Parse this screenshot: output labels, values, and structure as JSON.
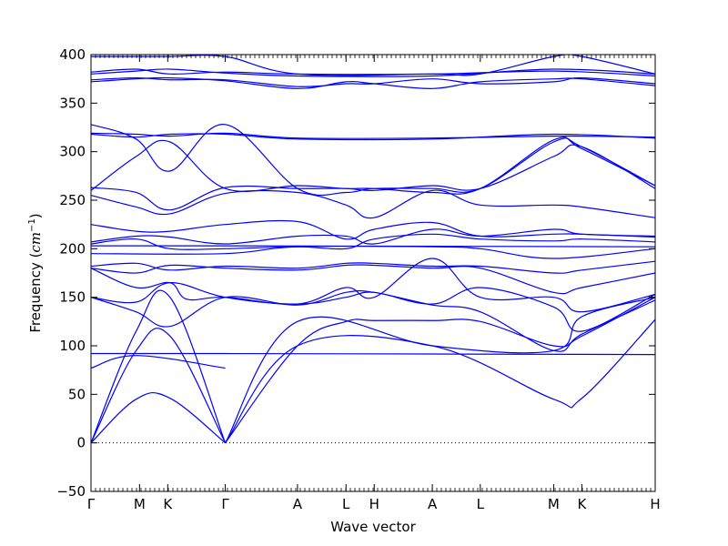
{
  "chart_data": {
    "type": "line",
    "xlabel": "Wave vector",
    "ylabel": "Frequency",
    "ylabel_unit": "cm",
    "ylabel_unit_exp": "−1",
    "ylim": [
      -50,
      400
    ],
    "yticks": [
      -50,
      0,
      50,
      100,
      150,
      200,
      250,
      300,
      350,
      400
    ],
    "x_range": [
      0,
      10
    ],
    "x_ticks": [
      {
        "pos": 0.0,
        "label": "Γ"
      },
      {
        "pos": 0.86,
        "label": "M"
      },
      {
        "pos": 1.36,
        "label": "K"
      },
      {
        "pos": 2.38,
        "label": "Γ"
      },
      {
        "pos": 3.66,
        "label": "A"
      },
      {
        "pos": 4.52,
        "label": "L"
      },
      {
        "pos": 5.02,
        "label": "H"
      },
      {
        "pos": 6.05,
        "label": "A"
      },
      {
        "pos": 6.9,
        "label": "L"
      },
      {
        "pos": 8.2,
        "label": "M"
      },
      {
        "pos": 8.7,
        "label": "K"
      },
      {
        "pos": 10.0,
        "label": "H"
      }
    ],
    "zero_line": true,
    "line_color": "#0000ff",
    "series": [
      {
        "x": [
          0,
          0.8,
          1.4,
          2.38
        ],
        "y": [
          0,
          45,
          46,
          0
        ]
      },
      {
        "x": [
          0,
          0.8,
          1.4,
          2.38
        ],
        "y": [
          0,
          95,
          110,
          0
        ]
      },
      {
        "x": [
          0,
          0.8,
          1.4,
          2.38
        ],
        "y": [
          0,
          115,
          150,
          0
        ]
      },
      {
        "x": [
          2.38,
          3.66,
          6.05,
          8.2,
          8.7,
          10
        ],
        "y": [
          0,
          100,
          100,
          45,
          46,
          127
        ]
      },
      {
        "x": [
          2.38,
          3.66,
          4.52,
          5.02,
          6.05,
          6.9,
          8.2,
          8.7,
          10
        ],
        "y": [
          0,
          100,
          125,
          126,
          126,
          125,
          100,
          110,
          150
        ]
      },
      {
        "x": [
          2.38,
          3.66,
          6.05,
          8.2,
          8.7,
          10
        ],
        "y": [
          0,
          125,
          100,
          95,
          130,
          150
        ]
      },
      {
        "x": [
          0,
          2.38,
          10
        ],
        "y": [
          92,
          92,
          91
        ]
      },
      {
        "x": [
          0,
          0.8,
          2.38
        ],
        "y": [
          77,
          90,
          77
        ]
      },
      {
        "x": [
          0,
          0.8,
          1.4,
          2.38,
          3.66,
          4.52,
          5.02,
          6.05,
          6.9,
          8.2,
          8.7,
          10
        ],
        "y": [
          150,
          135,
          120,
          150,
          142,
          155,
          155,
          142,
          135,
          95,
          112,
          147
        ]
      },
      {
        "x": [
          0,
          0.8,
          1.4,
          2.38,
          3.66,
          4.52,
          5.02,
          6.05,
          6.9,
          8.2,
          8.7,
          10
        ],
        "y": [
          150,
          145,
          165,
          150,
          143,
          150,
          155,
          143,
          160,
          140,
          115,
          153
        ]
      },
      {
        "x": [
          0,
          0.8,
          1.4,
          1.7,
          2.38,
          3.66,
          4.52,
          5.02,
          6.05,
          6.9,
          8.2,
          8.7,
          10
        ],
        "y": [
          180,
          160,
          165,
          148,
          150,
          143,
          160,
          150,
          190,
          150,
          150,
          135,
          153
        ]
      },
      {
        "x": [
          0,
          0.8,
          1.4,
          2.38,
          3.66,
          4.52,
          5.02,
          6.05,
          6.9,
          8.2,
          8.7,
          10
        ],
        "y": [
          180,
          175,
          183,
          180,
          178,
          183,
          183,
          180,
          180,
          155,
          160,
          175
        ]
      },
      {
        "x": [
          0,
          0.8,
          1.4,
          2.38,
          3.66,
          4.52,
          5.02,
          6.05,
          6.9,
          8.2,
          8.7,
          10
        ],
        "y": [
          182,
          185,
          178,
          182,
          180,
          185,
          185,
          182,
          182,
          175,
          178,
          187
        ]
      },
      {
        "x": [
          0,
          2.38,
          3.66,
          6.05,
          6.9,
          8.2,
          10
        ],
        "y": [
          195,
          195,
          202,
          202,
          200,
          190,
          200
        ]
      },
      {
        "x": [
          0,
          0.8,
          1.4,
          2.38,
          3.66,
          4.52,
          5.02,
          6.05,
          6.9,
          8.2,
          8.7,
          10
        ],
        "y": [
          205,
          210,
          200,
          200,
          202,
          200,
          210,
          215,
          210,
          208,
          210,
          207
        ]
      },
      {
        "x": [
          0,
          2.38,
          10
        ],
        "y": [
          203,
          203,
          202
        ]
      },
      {
        "x": [
          0,
          0.8,
          1.4,
          2.38,
          3.66,
          4.52,
          5.02,
          6.05,
          6.9,
          8.2,
          8.7,
          10
        ],
        "y": [
          207,
          213,
          212,
          205,
          213,
          213,
          205,
          220,
          213,
          220,
          215,
          213
        ]
      },
      {
        "x": [
          0,
          0.8,
          1.4,
          2.38,
          3.66,
          4.52,
          5.02,
          6.05,
          6.9,
          8.2,
          8.7,
          10
        ],
        "y": [
          225,
          218,
          218,
          225,
          228,
          210,
          220,
          227,
          213,
          215,
          215,
          212
        ]
      },
      {
        "x": [
          0,
          0.8,
          1.4,
          2.38,
          3.66,
          4.52,
          5.02,
          6.05,
          6.9,
          8.2,
          8.7,
          10
        ],
        "y": [
          255,
          243,
          236,
          257,
          258,
          245,
          232,
          260,
          245,
          245,
          243,
          232
        ]
      },
      {
        "x": [
          0,
          0.8,
          1.4,
          2.38,
          3.66,
          4.52,
          5.02,
          6.05,
          6.9,
          8.2,
          8.7,
          10
        ],
        "y": [
          263,
          258,
          240,
          263,
          262,
          262,
          260,
          265,
          262,
          295,
          305,
          262
        ]
      },
      {
        "x": [
          0,
          0.8,
          1.4,
          2.38,
          3.66,
          4.52,
          5.02,
          6.05,
          6.9,
          8.2,
          8.7,
          10
        ],
        "y": [
          260,
          295,
          310,
          262,
          265,
          262,
          262,
          258,
          262,
          312,
          303,
          265
        ]
      },
      {
        "x": [
          0,
          0.8,
          1.4,
          2.38,
          3.66,
          4.52,
          5.02,
          6.05,
          6.9,
          8.2,
          8.7,
          10
        ],
        "y": [
          328,
          313,
          280,
          328,
          262,
          258,
          262,
          262,
          262,
          310,
          305,
          265
        ]
      },
      {
        "x": [
          0,
          0.8,
          1.4,
          2.38,
          3.66,
          6.05,
          8.2,
          10
        ],
        "y": [
          318,
          315,
          318,
          318,
          313,
          313,
          318,
          314
        ]
      },
      {
        "x": [
          0,
          0.8,
          1.4,
          2.38,
          3.66,
          6.05,
          8.2,
          10
        ],
        "y": [
          319,
          318,
          316,
          319,
          314,
          314,
          316,
          315
        ]
      },
      {
        "x": [
          0,
          0.8,
          1.4,
          2.38,
          3.66,
          4.52,
          5.02,
          6.05,
          6.9,
          8.2,
          8.7,
          10
        ],
        "y": [
          372,
          375,
          376,
          373,
          365,
          372,
          370,
          365,
          372,
          375,
          375,
          368
        ]
      },
      {
        "x": [
          0,
          0.8,
          1.4,
          2.38,
          3.66,
          4.52,
          5.02,
          6.05,
          6.9,
          8.2,
          8.7,
          10
        ],
        "y": [
          374,
          376,
          374,
          374,
          367,
          370,
          370,
          375,
          370,
          372,
          376,
          370
        ]
      },
      {
        "x": [
          0,
          0.8,
          1.4,
          2.38,
          3.66,
          6.05,
          8.2,
          10
        ],
        "y": [
          380,
          383,
          385,
          381,
          378,
          378,
          385,
          380
        ]
      },
      {
        "x": [
          0,
          0.8,
          1.4,
          2.38,
          3.66,
          6.05,
          8.2,
          10
        ],
        "y": [
          382,
          385,
          380,
          382,
          380,
          380,
          383,
          378
        ]
      },
      {
        "x": [
          0,
          0.8,
          1.4,
          2.38,
          3.66,
          6.05,
          6.9,
          8.2,
          8.7,
          10
        ],
        "y": [
          398,
          398,
          398,
          398,
          380,
          380,
          380,
          398,
          398,
          380
        ]
      }
    ]
  }
}
